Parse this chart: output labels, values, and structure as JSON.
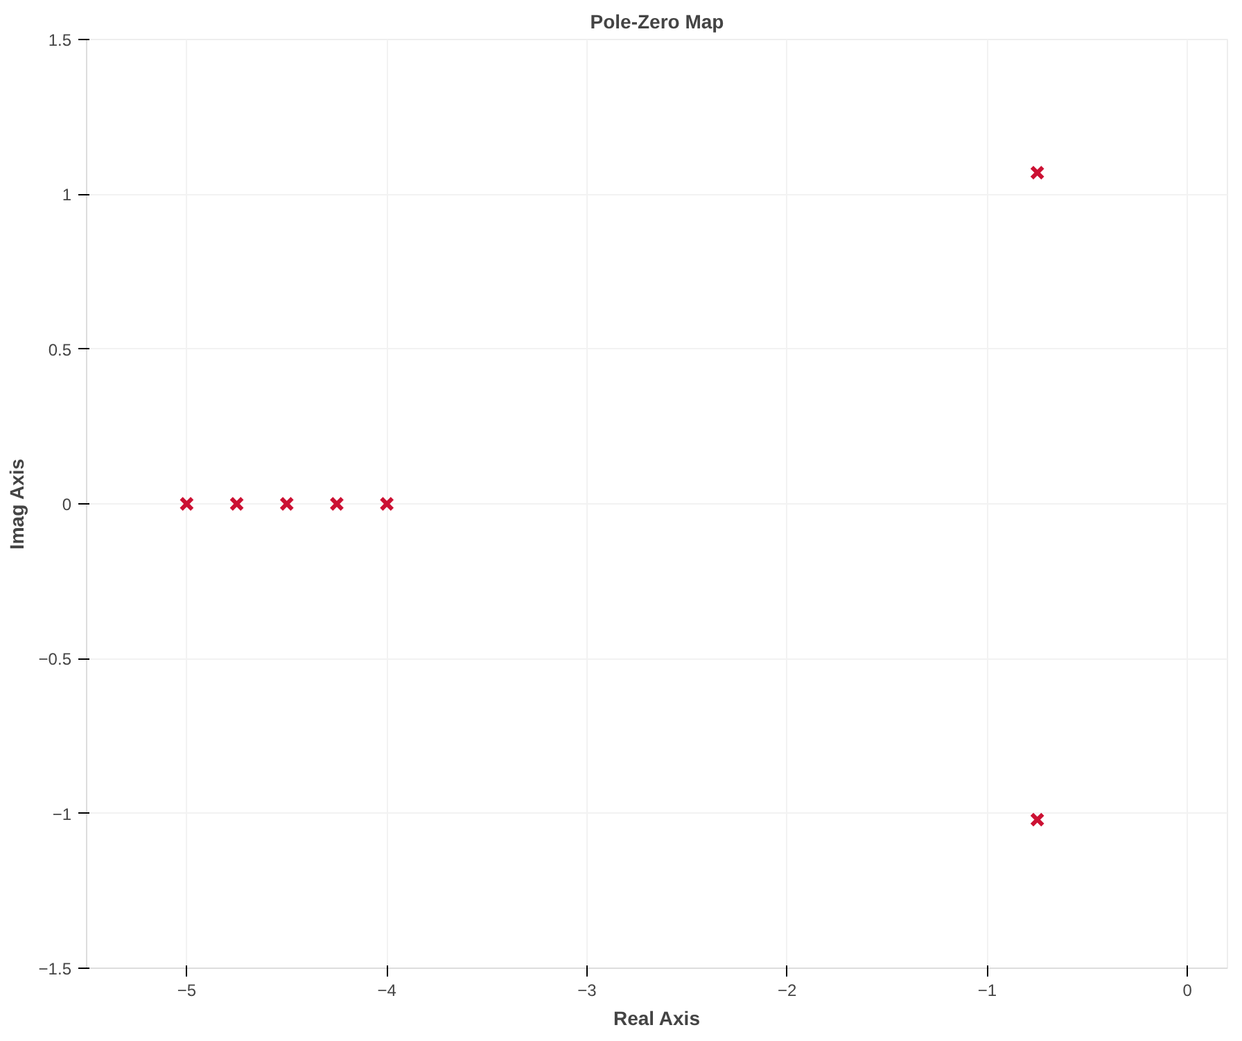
{
  "chart_data": {
    "type": "scatter",
    "title": "Pole-Zero Map",
    "xlabel": "Real Axis",
    "ylabel": "Imag Axis",
    "x": [
      -5,
      -4.75,
      -4.5,
      -4.25,
      -4,
      -0.75,
      -0.75
    ],
    "series": [
      {
        "color": "#cc1133",
        "values": [
          0,
          0,
          0,
          0,
          0,
          1.07,
          -1.02
        ]
      }
    ],
    "marker": "cross",
    "grid": true,
    "xlim": [
      -5.5,
      0.2
    ],
    "xticks": [
      -5,
      -4,
      -3,
      -2,
      -1,
      0
    ],
    "ylim": [
      -1.5,
      1.5
    ],
    "yticks": [
      -1.5,
      -1,
      -0.5,
      0,
      0.5,
      1,
      1.5
    ]
  }
}
